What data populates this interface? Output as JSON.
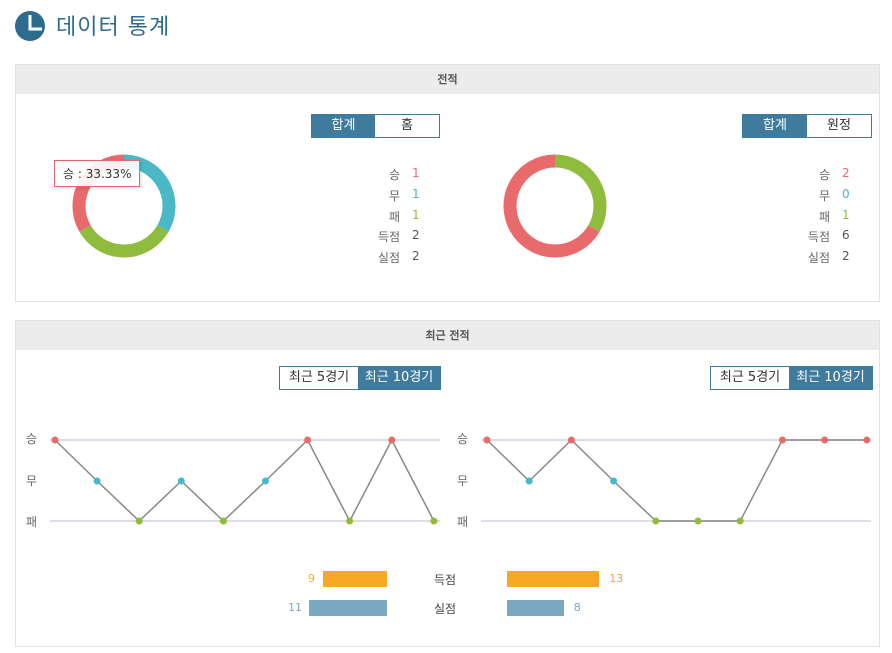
{
  "header": {
    "title": "데이터 통계"
  },
  "colors": {
    "win": "#e86a6a",
    "draw": "#4bb8c8",
    "loss": "#8fbc3c",
    "accent": "#3e7b9d",
    "goals": "#f9a825",
    "conceded": "#7aa8c0"
  },
  "record": {
    "title": "전적",
    "left": {
      "tabs": [
        {
          "label": "합계",
          "active": true
        },
        {
          "label": "홈",
          "active": false
        }
      ],
      "tooltip": "승 : 33.33%",
      "donut": {
        "win": 1,
        "draw": 1,
        "loss": 1
      },
      "stats": [
        {
          "label": "승",
          "value": "1",
          "color": "#e86a6a"
        },
        {
          "label": "무",
          "value": "1",
          "color": "#4bb8c8"
        },
        {
          "label": "패",
          "value": "1",
          "color": "#8fbc3c"
        },
        {
          "label": "득점",
          "value": "2",
          "color": "#555555"
        },
        {
          "label": "실점",
          "value": "2",
          "color": "#555555"
        }
      ]
    },
    "right": {
      "tabs": [
        {
          "label": "합계",
          "active": true
        },
        {
          "label": "원정",
          "active": false
        }
      ],
      "donut": {
        "win": 2,
        "draw": 0,
        "loss": 1
      },
      "stats": [
        {
          "label": "승",
          "value": "2",
          "color": "#e86a6a"
        },
        {
          "label": "무",
          "value": "0",
          "color": "#4bb8c8"
        },
        {
          "label": "패",
          "value": "1",
          "color": "#8fbc3c"
        },
        {
          "label": "득점",
          "value": "6",
          "color": "#555555"
        },
        {
          "label": "실점",
          "value": "2",
          "color": "#555555"
        }
      ]
    }
  },
  "recent": {
    "title": "최근 전적",
    "left": {
      "tabs": [
        {
          "label": "최근 5경기",
          "active": false
        },
        {
          "label": "최근 10경기",
          "active": true
        }
      ],
      "results": [
        "W",
        "D",
        "L",
        "D",
        "L",
        "D",
        "W",
        "L",
        "W",
        "L"
      ]
    },
    "right": {
      "tabs": [
        {
          "label": "최근 5경기",
          "active": false
        },
        {
          "label": "최근 10경기",
          "active": true
        }
      ],
      "results": [
        "W",
        "D",
        "W",
        "D",
        "L",
        "L",
        "L",
        "W",
        "W",
        "W"
      ]
    },
    "y_labels": {
      "win": "승",
      "draw": "무",
      "loss": "패"
    },
    "goals": {
      "label": "득점",
      "left": 9,
      "right": 13
    },
    "conceded": {
      "label": "실점",
      "left": 11,
      "right": 8
    }
  }
}
